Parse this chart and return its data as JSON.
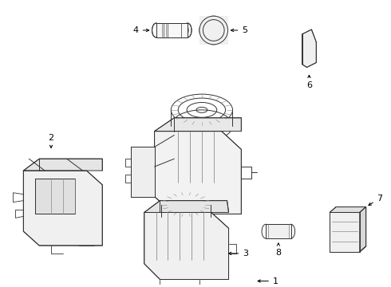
{
  "bg_color": "#ffffff",
  "line_color": "#333333",
  "line_width": 0.7,
  "figsize": [
    4.9,
    3.6
  ],
  "dpi": 100,
  "font_size": 8,
  "arrow_lw": 0.7
}
